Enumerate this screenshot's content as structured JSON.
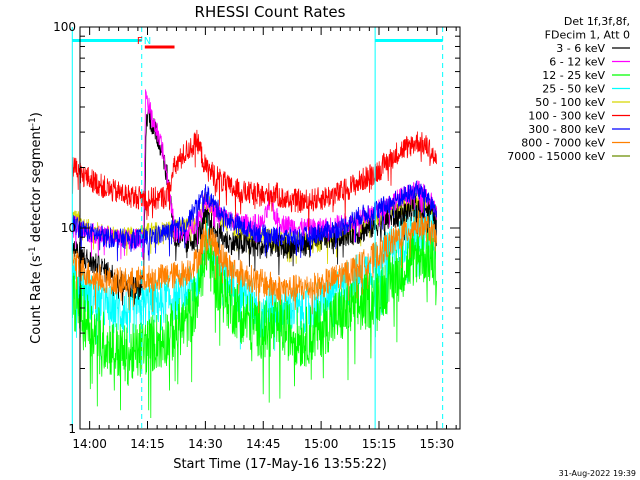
{
  "chart_data": {
    "type": "line",
    "title": "RHESSI Count Rates",
    "xlabel": "Start Time (17-May-16 13:55:22)",
    "ylabel_main": "Count Rate (s",
    "ylabel_sup1": "-1",
    "ylabel_mid": " detector segment",
    "ylabel_sup2": "-1",
    "ylabel_end": ")",
    "yscale": "log",
    "ylim": [
      1,
      100
    ],
    "xlim_minutes": [
      -2.5,
      96
    ],
    "x_ticks": [
      {
        "m": 0,
        "label": "14:00"
      },
      {
        "m": 15,
        "label": "14:15"
      },
      {
        "m": 30,
        "label": "14:30"
      },
      {
        "m": 45,
        "label": "14:45"
      },
      {
        "m": 60,
        "label": "15:00"
      },
      {
        "m": 75,
        "label": "15:15"
      },
      {
        "m": 90,
        "label": "15:30"
      }
    ],
    "y_tick_labels": [
      {
        "v": 1,
        "label": "1"
      },
      {
        "v": 10,
        "label": "10"
      },
      {
        "v": 100,
        "label": "100"
      }
    ],
    "legend_header": [
      "Det 1f,3f,8f,",
      "FDecim 1, Att 0"
    ],
    "series": [
      {
        "name": "3 - 6 keV",
        "color": "#000000",
        "points": [
          [
            -4.5,
            8.0
          ],
          [
            0,
            6.8
          ],
          [
            5,
            6.0
          ],
          [
            10,
            5.2
          ],
          [
            13,
            5.0
          ],
          [
            14,
            6.0
          ],
          [
            14.6,
            30
          ],
          [
            15,
            38
          ],
          [
            17,
            30
          ],
          [
            19,
            24
          ],
          [
            21,
            14
          ],
          [
            22,
            8.8
          ],
          [
            25,
            8.4
          ],
          [
            27,
            8.8
          ],
          [
            29,
            10.0
          ],
          [
            30,
            11.5
          ],
          [
            33,
            9.5
          ],
          [
            36,
            8.5
          ],
          [
            40,
            8.3
          ],
          [
            45,
            8.0
          ],
          [
            48,
            8.3
          ],
          [
            50,
            8.0
          ],
          [
            55,
            8.2
          ],
          [
            60,
            8.8
          ],
          [
            65,
            9.3
          ],
          [
            70,
            9.5
          ],
          [
            75,
            10.5
          ],
          [
            80,
            11.5
          ],
          [
            85,
            12.8
          ],
          [
            88,
            12.5
          ],
          [
            90,
            11.0
          ]
        ]
      },
      {
        "name": "6 - 12 keV",
        "color": "#ff00ff",
        "points": [
          [
            -4.5,
            10.5
          ],
          [
            0,
            9.5
          ],
          [
            5,
            9.0
          ],
          [
            10,
            8.8
          ],
          [
            14,
            9.0
          ],
          [
            14.5,
            50
          ],
          [
            15,
            42
          ],
          [
            17,
            32
          ],
          [
            19,
            24
          ],
          [
            21,
            14
          ],
          [
            22,
            9.5
          ],
          [
            25,
            9.3
          ],
          [
            28,
            11.0
          ],
          [
            30,
            14.0
          ],
          [
            33,
            12.0
          ],
          [
            36,
            11.0
          ],
          [
            40,
            10.5
          ],
          [
            45,
            10.5
          ],
          [
            47,
            14.0
          ],
          [
            48,
            11.5
          ],
          [
            50,
            10.5
          ],
          [
            55,
            10.0
          ],
          [
            60,
            10.0
          ],
          [
            65,
            10.5
          ],
          [
            70,
            11.0
          ],
          [
            75,
            12.5
          ],
          [
            80,
            14.0
          ],
          [
            85,
            15.5
          ],
          [
            88,
            14.0
          ],
          [
            90,
            12.0
          ]
        ]
      },
      {
        "name": "12 - 25 keV",
        "color": "#00ff00",
        "points": [
          [
            -4.5,
            4.5
          ],
          [
            0,
            3.3
          ],
          [
            5,
            2.6
          ],
          [
            10,
            2.3
          ],
          [
            15,
            2.6
          ],
          [
            20,
            2.9
          ],
          [
            25,
            3.4
          ],
          [
            28,
            4.5
          ],
          [
            30,
            8.5
          ],
          [
            32,
            6.0
          ],
          [
            35,
            4.6
          ],
          [
            40,
            3.6
          ],
          [
            45,
            3.1
          ],
          [
            50,
            3.2
          ],
          [
            55,
            2.8
          ],
          [
            60,
            3.2
          ],
          [
            65,
            3.7
          ],
          [
            70,
            4.1
          ],
          [
            75,
            4.8
          ],
          [
            80,
            6.0
          ],
          [
            85,
            7.5
          ],
          [
            88,
            7.2
          ],
          [
            90,
            6.5
          ]
        ]
      },
      {
        "name": "25 - 50 keV",
        "color": "#00ffff",
        "points": [
          [
            -4.5,
            5.8
          ],
          [
            0,
            4.6
          ],
          [
            5,
            4.0
          ],
          [
            10,
            3.8
          ],
          [
            15,
            4.2
          ],
          [
            20,
            4.4
          ],
          [
            25,
            4.7
          ],
          [
            28,
            5.4
          ],
          [
            30,
            9.5
          ],
          [
            32,
            7.5
          ],
          [
            35,
            5.8
          ],
          [
            40,
            4.6
          ],
          [
            45,
            4.0
          ],
          [
            50,
            4.0
          ],
          [
            55,
            3.9
          ],
          [
            60,
            4.2
          ],
          [
            65,
            5.0
          ],
          [
            70,
            5.8
          ],
          [
            75,
            6.8
          ],
          [
            80,
            8.4
          ],
          [
            85,
            10.0
          ],
          [
            88,
            9.6
          ],
          [
            90,
            9.0
          ]
        ]
      },
      {
        "name": "50 - 100 keV",
        "color": "#d7d700",
        "points": [
          [
            -4.5,
            11.5
          ],
          [
            0,
            9.8
          ],
          [
            5,
            9.3
          ],
          [
            10,
            9.0
          ],
          [
            15,
            9.5
          ],
          [
            20,
            9.8
          ],
          [
            25,
            10.0
          ],
          [
            28,
            11.5
          ],
          [
            30,
            14.0
          ],
          [
            33,
            12.0
          ],
          [
            36,
            10.5
          ],
          [
            40,
            9.5
          ],
          [
            45,
            9.0
          ],
          [
            50,
            8.8
          ],
          [
            55,
            8.5
          ],
          [
            60,
            8.5
          ],
          [
            65,
            9.5
          ],
          [
            70,
            10.5
          ],
          [
            75,
            11.5
          ],
          [
            80,
            12.5
          ],
          [
            85,
            14.0
          ],
          [
            88,
            13.0
          ],
          [
            90,
            12.0
          ]
        ]
      },
      {
        "name": "100 - 300 keV",
        "color": "#ff0000",
        "points": [
          [
            -4.5,
            20
          ],
          [
            0,
            17.5
          ],
          [
            5,
            15.5
          ],
          [
            10,
            14.5
          ],
          [
            15,
            14.0
          ],
          [
            18,
            14.0
          ],
          [
            20,
            14.5
          ],
          [
            22,
            20
          ],
          [
            25,
            24
          ],
          [
            28,
            27
          ],
          [
            30,
            20
          ],
          [
            33,
            18.0
          ],
          [
            36,
            16.0
          ],
          [
            40,
            15.0
          ],
          [
            45,
            14.5
          ],
          [
            48,
            15.0
          ],
          [
            50,
            14.0
          ],
          [
            55,
            13.5
          ],
          [
            60,
            14.0
          ],
          [
            65,
            15.0
          ],
          [
            70,
            17.0
          ],
          [
            75,
            19.5
          ],
          [
            80,
            24
          ],
          [
            85,
            27
          ],
          [
            88,
            25
          ],
          [
            90,
            21
          ]
        ]
      },
      {
        "name": "300 - 800 keV",
        "color": "#0000ff",
        "points": [
          [
            -4.5,
            10.5
          ],
          [
            0,
            9.5
          ],
          [
            5,
            9.0
          ],
          [
            10,
            8.8
          ],
          [
            15,
            9.0
          ],
          [
            20,
            9.5
          ],
          [
            25,
            10.5
          ],
          [
            28,
            13.0
          ],
          [
            30,
            15.0
          ],
          [
            33,
            12.5
          ],
          [
            36,
            11.0
          ],
          [
            40,
            10.0
          ],
          [
            45,
            9.3
          ],
          [
            50,
            9.0
          ],
          [
            55,
            9.0
          ],
          [
            60,
            9.5
          ],
          [
            65,
            10.0
          ],
          [
            70,
            11.5
          ],
          [
            75,
            12.5
          ],
          [
            80,
            14.0
          ],
          [
            85,
            15.5
          ],
          [
            88,
            14.0
          ],
          [
            90,
            12.0
          ]
        ]
      },
      {
        "name": "800 - 7000 keV",
        "color": "#ff8000",
        "points": [
          [
            -4.5,
            7.0
          ],
          [
            0,
            5.8
          ],
          [
            5,
            5.5
          ],
          [
            10,
            5.4
          ],
          [
            15,
            5.6
          ],
          [
            20,
            5.7
          ],
          [
            25,
            6.0
          ],
          [
            28,
            7.0
          ],
          [
            30,
            9.5
          ],
          [
            33,
            8.0
          ],
          [
            36,
            6.5
          ],
          [
            40,
            5.8
          ],
          [
            45,
            5.3
          ],
          [
            50,
            5.0
          ],
          [
            55,
            5.0
          ],
          [
            60,
            5.2
          ],
          [
            65,
            5.8
          ],
          [
            70,
            6.5
          ],
          [
            75,
            7.5
          ],
          [
            80,
            9.0
          ],
          [
            85,
            10.5
          ],
          [
            88,
            9.8
          ],
          [
            90,
            8.5
          ]
        ]
      },
      {
        "name": "7000 - 15000 keV",
        "color": "#6b8e00",
        "points": []
      }
    ],
    "attenuator_intervals": [
      {
        "start": -4.5,
        "end": 13.5,
        "color": "#00ffff"
      },
      {
        "start": 74.0,
        "end": 91.5,
        "color": "#00ffff"
      }
    ],
    "interval_markers": [
      {
        "m": -4.5,
        "style": "solid",
        "color": "#00ffff"
      },
      {
        "m": 13.5,
        "style": "dashed",
        "color": "#00ffff"
      },
      {
        "m": 74.0,
        "style": "solid",
        "color": "#00ffff"
      },
      {
        "m": 91.5,
        "style": "dashed",
        "color": "#00ffff"
      }
    ],
    "flag_labels": [
      {
        "label": "F",
        "m": 13.0,
        "color": "#ff0000"
      },
      {
        "label": "N",
        "m": 15.0,
        "color": "#00ffff"
      }
    ],
    "flare_bar": {
      "start": 14.3,
      "end": 22.0,
      "color": "#ff0000"
    },
    "timestamp": "31-Aug-2022 19:39"
  }
}
